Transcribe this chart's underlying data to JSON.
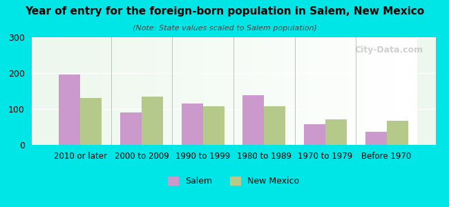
{
  "title": "Year of entry for the foreign-born population in Salem, New Mexico",
  "subtitle": "(Note: State values scaled to Salem population)",
  "categories": [
    "2010 or later",
    "2000 to 2009",
    "1990 to 1999",
    "1980 to 1989",
    "1970 to 1979",
    "Before 1970"
  ],
  "salem_values": [
    196,
    90,
    115,
    138,
    57,
    37
  ],
  "newmexico_values": [
    130,
    135,
    107,
    107,
    72,
    68
  ],
  "salem_color": "#cc99cc",
  "newmexico_color": "#b5c98a",
  "background_outer": "#00e5e5",
  "background_inner_left": "#e8f5e8",
  "background_inner_right": "#f5f5f5",
  "ylim": [
    0,
    300
  ],
  "yticks": [
    0,
    100,
    200,
    300
  ],
  "bar_width": 0.35,
  "watermark": "City-Data.com",
  "legend_salem": "Salem",
  "legend_newmexico": "New Mexico"
}
